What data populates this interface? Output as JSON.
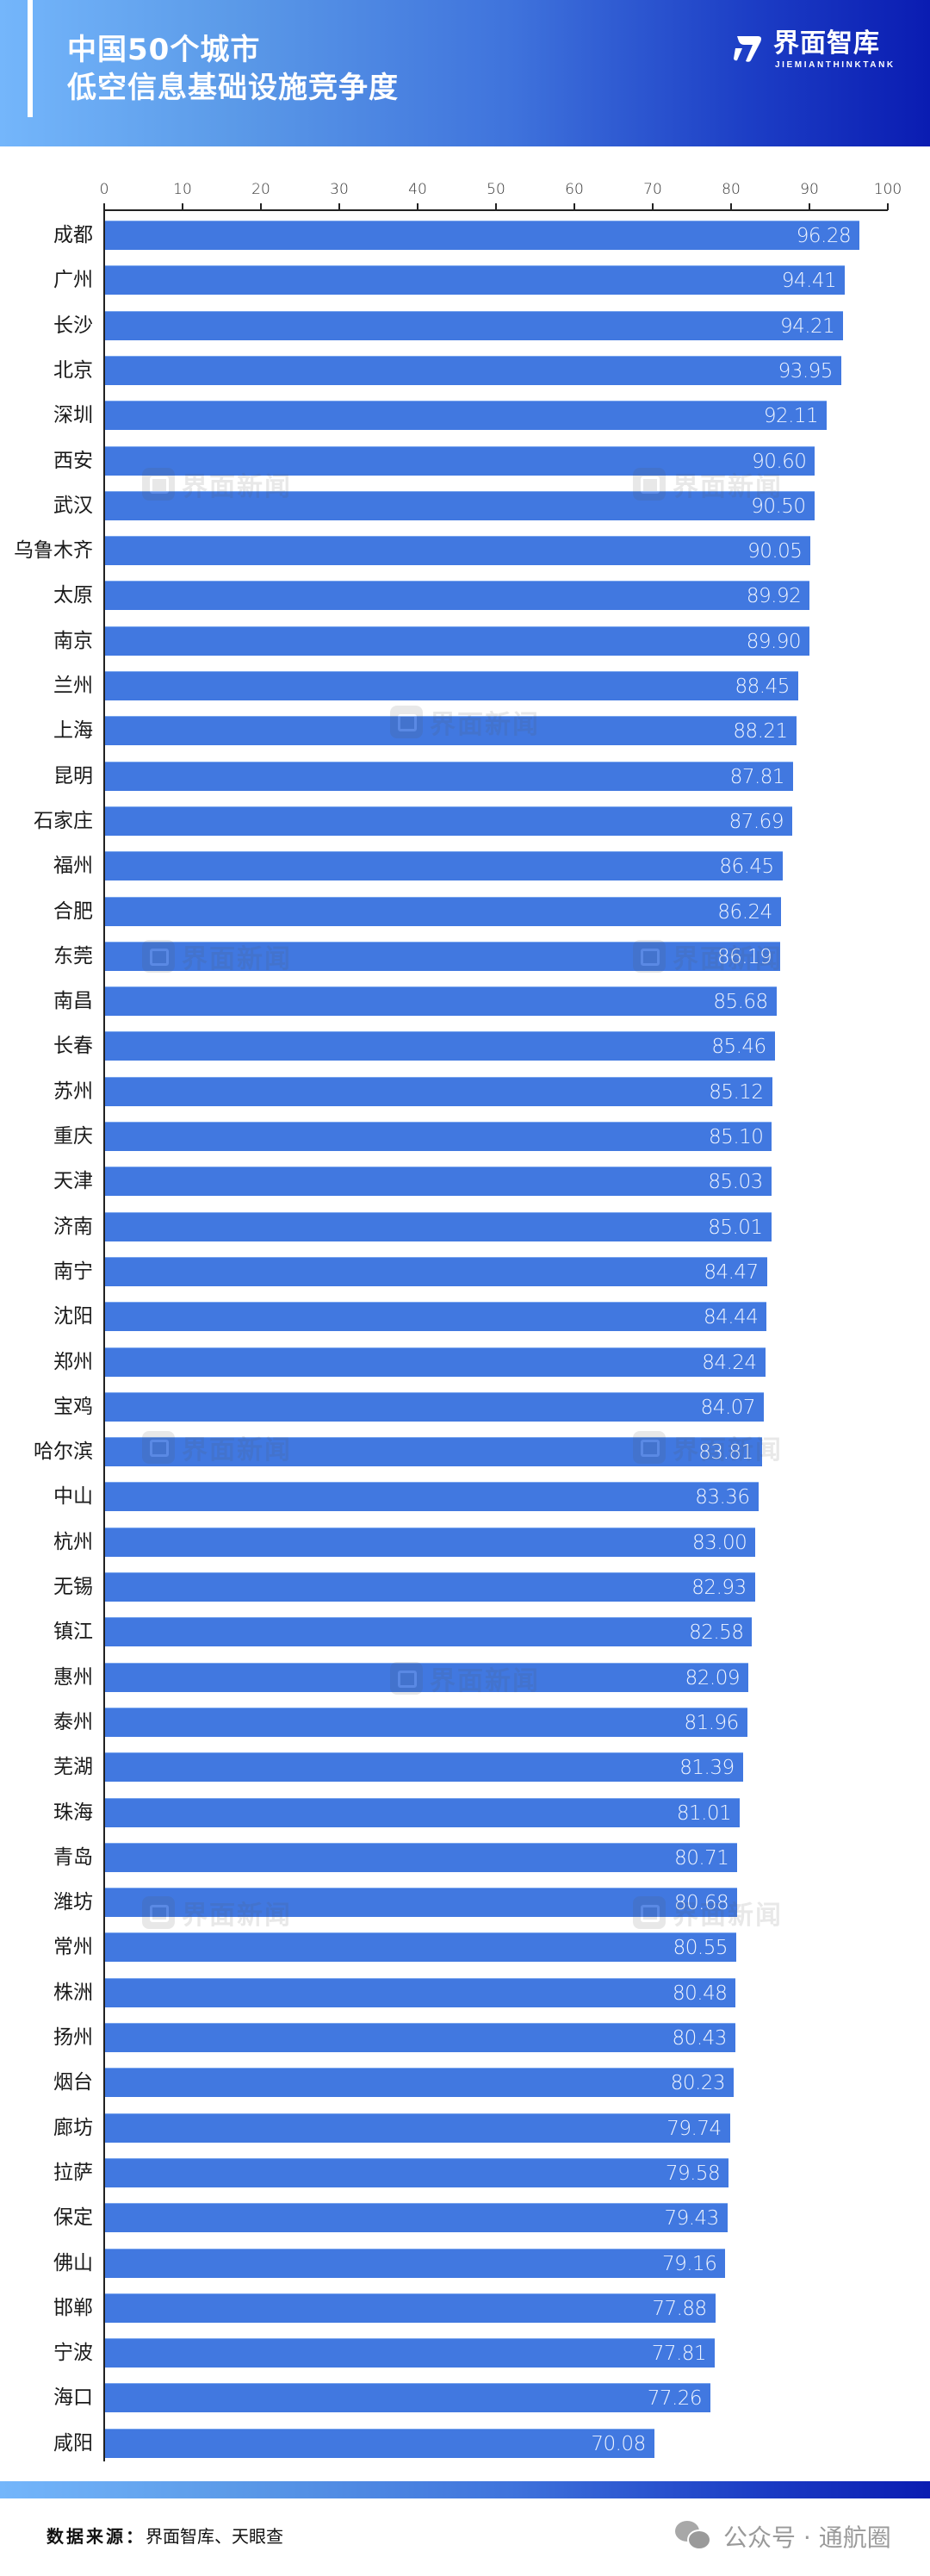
{
  "header": {
    "title_line1": "中国50个城市",
    "title_line2": "低空信息基础设施竞争度",
    "logo_text": "界面智库",
    "logo_sub": "JIEMIANTHINKTANK",
    "gradient_colors": [
      "#74b6fb",
      "#0a1cb2"
    ]
  },
  "watermark": {
    "text": "界面新闻"
  },
  "footer": {
    "source_label": "数据来源：",
    "source_value": "界面智库、天眼查",
    "wechat_text": "公众号 · 通航圈"
  },
  "colors": {
    "bar": "#4178e0",
    "value_text": "#eef4ff",
    "axis": "#222222"
  },
  "chart_data": {
    "type": "bar",
    "orientation": "horizontal",
    "title": "中国50个城市低空信息基础设施竞争度",
    "xlabel": "",
    "ylabel": "",
    "xlim": [
      0,
      100
    ],
    "xticks": [
      0,
      10,
      20,
      30,
      40,
      50,
      60,
      70,
      80,
      90,
      100
    ],
    "grid": false,
    "legend": null,
    "categories": [
      "成都",
      "广州",
      "长沙",
      "北京",
      "深圳",
      "西安",
      "武汉",
      "乌鲁木齐",
      "太原",
      "南京",
      "兰州",
      "上海",
      "昆明",
      "石家庄",
      "福州",
      "合肥",
      "东莞",
      "南昌",
      "长春",
      "苏州",
      "重庆",
      "天津",
      "济南",
      "南宁",
      "沈阳",
      "郑州",
      "宝鸡",
      "哈尔滨",
      "中山",
      "杭州",
      "无锡",
      "镇江",
      "惠州",
      "泰州",
      "芜湖",
      "珠海",
      "青岛",
      "潍坊",
      "常州",
      "株洲",
      "扬州",
      "烟台",
      "廊坊",
      "拉萨",
      "保定",
      "佛山",
      "邯郸",
      "宁波",
      "海口",
      "咸阳"
    ],
    "values": [
      96.28,
      94.41,
      94.21,
      93.95,
      92.11,
      90.6,
      90.5,
      90.05,
      89.92,
      89.9,
      88.45,
      88.21,
      87.81,
      87.69,
      86.45,
      86.24,
      86.19,
      85.68,
      85.46,
      85.12,
      85.1,
      85.03,
      85.01,
      84.47,
      84.44,
      84.24,
      84.07,
      83.81,
      83.36,
      83.0,
      82.93,
      82.58,
      82.09,
      81.96,
      81.39,
      81.01,
      80.71,
      80.68,
      80.55,
      80.48,
      80.43,
      80.23,
      79.74,
      79.58,
      79.43,
      79.16,
      77.88,
      77.81,
      77.26,
      70.08
    ],
    "value_labels": [
      "96.28",
      "94.41",
      "94.21",
      "93.95",
      "92.11",
      "90.60",
      "90.50",
      "90.05",
      "89.92",
      "89.90",
      "88.45",
      "88.21",
      "87.81",
      "87.69",
      "86.45",
      "86.24",
      "86.19",
      "85.68",
      "85.46",
      "85.12",
      "85.10",
      "85.03",
      "85.01",
      "84.47",
      "84.44",
      "84.24",
      "84.07",
      "83.81",
      "83.36",
      "83.00",
      "82.93",
      "82.58",
      "82.09",
      "81.96",
      "81.39",
      "81.01",
      "80.71",
      "80.68",
      "80.55",
      "80.48",
      "80.43",
      "80.23",
      "79.74",
      "79.58",
      "79.43",
      "79.16",
      "77.88",
      "77.81",
      "77.26",
      "70.08"
    ]
  }
}
